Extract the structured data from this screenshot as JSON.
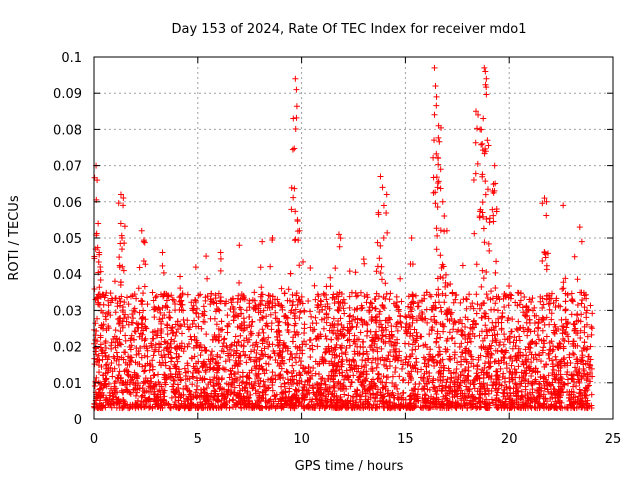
{
  "chart_data": {
    "type": "scatter",
    "title": "Day 153 of 2024, Rate Of TEC Index for receiver mdo1",
    "xlabel": "GPS time / hours",
    "ylabel": "ROTI / TECUs",
    "xlim": [
      0,
      25
    ],
    "ylim": [
      0,
      0.1
    ],
    "x_ticks": [
      "0",
      "5",
      "10",
      "15",
      "20",
      "25"
    ],
    "y_ticks": [
      "0",
      "0.01",
      "0.02",
      "0.03",
      "0.04",
      "0.05",
      "0.06",
      "0.07",
      "0.08",
      "0.09",
      "0.1"
    ],
    "grid": true,
    "marker": "plus",
    "color": "#ff0000",
    "series": [
      {
        "points_sample": [
          [
            0.1,
            0.07
          ],
          [
            0.15,
            0.066
          ],
          [
            0.2,
            0.054
          ],
          [
            0.25,
            0.046
          ],
          [
            0.3,
            0.042
          ],
          [
            1.3,
            0.062
          ],
          [
            1.4,
            0.059
          ],
          [
            1.35,
            0.05
          ],
          [
            2.3,
            0.052
          ],
          [
            2.4,
            0.049
          ],
          [
            3.3,
            0.046
          ],
          [
            5.4,
            0.045
          ],
          [
            6.1,
            0.046
          ],
          [
            7.0,
            0.048
          ],
          [
            8.1,
            0.049
          ],
          [
            8.6,
            0.05
          ],
          [
            9.7,
            0.094
          ],
          [
            9.75,
            0.091
          ],
          [
            9.6,
            0.083
          ],
          [
            9.8,
            0.055
          ],
          [
            9.9,
            0.052
          ],
          [
            11.8,
            0.051
          ],
          [
            13.7,
            0.057
          ],
          [
            13.8,
            0.067
          ],
          [
            13.9,
            0.064
          ],
          [
            14.1,
            0.062
          ],
          [
            15.3,
            0.05
          ],
          [
            16.4,
            0.097
          ],
          [
            16.45,
            0.092
          ],
          [
            16.5,
            0.089
          ],
          [
            16.6,
            0.081
          ],
          [
            16.7,
            0.069
          ],
          [
            16.55,
            0.064
          ],
          [
            16.8,
            0.06
          ],
          [
            17.0,
            0.052
          ],
          [
            18.4,
            0.085
          ],
          [
            18.5,
            0.084
          ],
          [
            18.6,
            0.08
          ],
          [
            18.7,
            0.076
          ],
          [
            18.8,
            0.097
          ],
          [
            18.85,
            0.096
          ],
          [
            18.9,
            0.094
          ],
          [
            18.75,
            0.083
          ],
          [
            18.95,
            0.077
          ],
          [
            19.3,
            0.07
          ],
          [
            19.2,
            0.063
          ],
          [
            19.4,
            0.058
          ],
          [
            21.7,
            0.061
          ],
          [
            21.8,
            0.06
          ],
          [
            22.6,
            0.059
          ],
          [
            23.4,
            0.053
          ],
          [
            23.5,
            0.049
          ]
        ],
        "baseline_band": [
          0.003,
          0.035
        ]
      }
    ]
  }
}
